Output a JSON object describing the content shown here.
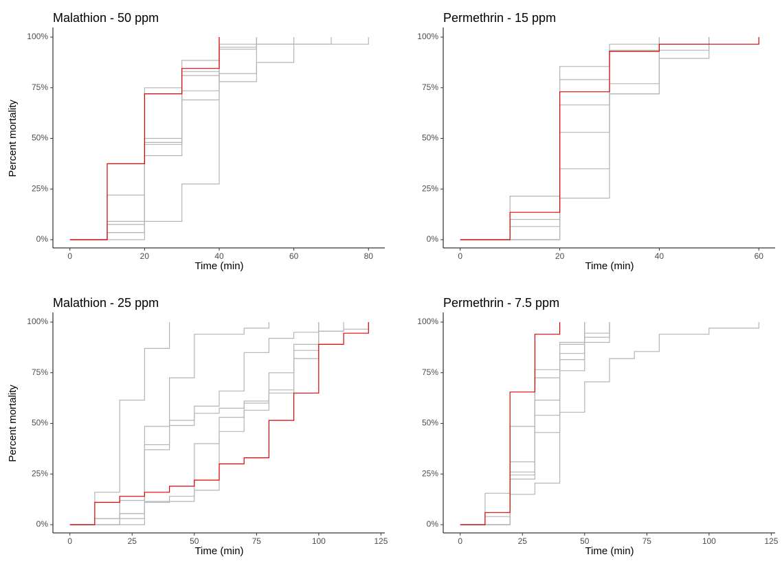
{
  "colors": {
    "highlight": "#e00000",
    "other": "#b4b4b4",
    "axis": "#000000"
  },
  "chart_data": [
    {
      "type": "line",
      "step": true,
      "title": "Malathion - 50 ppm",
      "xlabel": "Time (min)",
      "ylabel": "Percent mortality",
      "xlim": [
        -4,
        84
      ],
      "ylim": [
        0,
        1
      ],
      "xticks": [
        0,
        20,
        40,
        60,
        80
      ],
      "yticks": [
        0,
        0.25,
        0.5,
        0.75,
        1
      ],
      "ytick_labels": [
        "0%",
        "25%",
        "50%",
        "75%",
        "100%"
      ],
      "series": [
        {
          "highlight": true,
          "x": [
            0,
            10,
            20,
            30,
            40
          ],
          "y": [
            0,
            0.375,
            0.72,
            0.845,
            1.0
          ]
        },
        {
          "x": [
            0,
            10,
            20,
            30,
            40,
            50,
            60,
            70,
            80
          ],
          "y": [
            0,
            0.22,
            0.75,
            0.885,
            0.965,
            0.965,
            0.965,
            0.965,
            1.0
          ]
        },
        {
          "x": [
            0,
            10,
            20,
            30,
            40,
            50
          ],
          "y": [
            0,
            0.09,
            0.47,
            0.81,
            0.94,
            1.0
          ]
        },
        {
          "x": [
            0,
            10,
            20,
            30,
            40,
            50
          ],
          "y": [
            0,
            0.075,
            0.5,
            0.735,
            0.95,
            1.0
          ]
        },
        {
          "x": [
            0,
            10,
            20,
            30,
            40,
            50,
            60
          ],
          "y": [
            0,
            0.035,
            0.48,
            0.69,
            0.82,
            0.965,
            1.0
          ]
        },
        {
          "x": [
            0,
            10,
            20,
            30,
            40,
            50,
            60,
            70
          ],
          "y": [
            0,
            0.035,
            0.415,
            0.83,
            0.78,
            0.875,
            0.965,
            1.0
          ]
        },
        {
          "x": [
            0,
            20,
            30,
            40
          ],
          "y": [
            0,
            0.09,
            0.275,
            1.0
          ]
        }
      ]
    },
    {
      "type": "line",
      "step": true,
      "title": "Permethrin - 15 ppm",
      "xlabel": "Time (min)",
      "ylabel": "",
      "xlim": [
        -3,
        63
      ],
      "ylim": [
        0,
        1
      ],
      "xticks": [
        0,
        20,
        40,
        60
      ],
      "yticks": [
        0,
        0.25,
        0.5,
        0.75,
        1
      ],
      "ytick_labels": [
        "0%",
        "25%",
        "50%",
        "75%",
        "100%"
      ],
      "series": [
        {
          "highlight": true,
          "x": [
            0,
            10,
            20,
            30,
            40,
            60
          ],
          "y": [
            0,
            0.135,
            0.73,
            0.93,
            0.965,
            1.0
          ]
        },
        {
          "x": [
            0,
            10,
            20,
            30,
            40
          ],
          "y": [
            0,
            0.215,
            0.855,
            0.965,
            1.0
          ]
        },
        {
          "x": [
            0,
            10,
            20,
            30,
            40,
            50
          ],
          "y": [
            0,
            0.1,
            0.79,
            0.935,
            0.965,
            1.0
          ]
        },
        {
          "x": [
            0,
            10,
            20,
            30,
            40
          ],
          "y": [
            0,
            0.065,
            0.665,
            0.77,
            1.0
          ]
        },
        {
          "x": [
            0,
            20,
            30,
            40,
            50
          ],
          "y": [
            0,
            0.53,
            0.72,
            0.935,
            1.0
          ]
        },
        {
          "x": [
            0,
            20,
            30,
            40
          ],
          "y": [
            0,
            0.35,
            0.93,
            1.0
          ]
        },
        {
          "x": [
            0,
            20,
            30,
            40,
            50
          ],
          "y": [
            0,
            0.205,
            0.72,
            0.895,
            1.0
          ]
        }
      ]
    },
    {
      "type": "line",
      "step": true,
      "title": "Malathion - 25 ppm",
      "xlabel": "Time (min)",
      "ylabel": "Percent mortality",
      "xlim": [
        -6,
        126
      ],
      "ylim": [
        0,
        1
      ],
      "xticks": [
        0,
        25,
        50,
        75,
        100,
        125
      ],
      "yticks": [
        0,
        0.25,
        0.5,
        0.75,
        1
      ],
      "ytick_labels": [
        "0%",
        "25%",
        "50%",
        "75%",
        "100%"
      ],
      "series": [
        {
          "highlight": true,
          "x": [
            0,
            10,
            20,
            30,
            40,
            50,
            60,
            70,
            80,
            90,
            100,
            110,
            120
          ],
          "y": [
            0,
            0.11,
            0.14,
            0.16,
            0.19,
            0.22,
            0.3,
            0.33,
            0.515,
            0.65,
            0.89,
            0.945,
            1.0
          ]
        },
        {
          "x": [
            0,
            10,
            20,
            30,
            40
          ],
          "y": [
            0,
            0.16,
            0.615,
            0.87,
            1.0
          ]
        },
        {
          "x": [
            0,
            10,
            20,
            30,
            40,
            50,
            70,
            80
          ],
          "y": [
            0,
            0.03,
            0.12,
            0.485,
            0.725,
            0.94,
            0.97,
            1.0
          ]
        },
        {
          "x": [
            0,
            10,
            20,
            30,
            40,
            50,
            60,
            70,
            80,
            90,
            100,
            110
          ],
          "y": [
            0,
            0.03,
            0.055,
            0.395,
            0.515,
            0.585,
            0.66,
            0.85,
            0.92,
            0.95,
            0.955,
            1.0
          ]
        },
        {
          "x": [
            0,
            20,
            30,
            40,
            50,
            60,
            70,
            80,
            90,
            100,
            110,
            120
          ],
          "y": [
            0,
            0.03,
            0.37,
            0.49,
            0.55,
            0.575,
            0.61,
            0.75,
            0.86,
            0.955,
            0.965,
            1.0
          ]
        },
        {
          "x": [
            0,
            20,
            30,
            40,
            50,
            60,
            70,
            80,
            90,
            100
          ],
          "y": [
            0,
            0.055,
            0.11,
            0.115,
            0.4,
            0.46,
            0.565,
            0.665,
            0.89,
            1.0
          ]
        },
        {
          "x": [
            0,
            30,
            40,
            50,
            60,
            70,
            80,
            90,
            100
          ],
          "y": [
            0,
            0.115,
            0.14,
            0.17,
            0.53,
            0.6,
            0.65,
            0.82,
            1.0
          ]
        }
      ]
    },
    {
      "type": "line",
      "step": true,
      "title": "Permethrin - 7.5 ppm",
      "xlabel": "Time (min)",
      "ylabel": "",
      "xlim": [
        -6,
        126
      ],
      "ylim": [
        0,
        1
      ],
      "xticks": [
        0,
        25,
        50,
        75,
        100,
        125
      ],
      "yticks": [
        0,
        0.25,
        0.5,
        0.75,
        1
      ],
      "ytick_labels": [
        "0%",
        "25%",
        "50%",
        "75%",
        "100%"
      ],
      "series": [
        {
          "highlight": true,
          "x": [
            0,
            10,
            20,
            30,
            40
          ],
          "y": [
            0,
            0.06,
            0.655,
            0.94,
            1.0
          ]
        },
        {
          "x": [
            0,
            10,
            20,
            30,
            40,
            50,
            60,
            70,
            80,
            100,
            120
          ],
          "y": [
            0,
            0.155,
            0.15,
            0.205,
            0.555,
            0.705,
            0.82,
            0.855,
            0.94,
            0.97,
            1.0
          ]
        },
        {
          "x": [
            0,
            10,
            20,
            30,
            40,
            50
          ],
          "y": [
            0,
            0.04,
            0.485,
            0.765,
            0.9,
            1.0
          ]
        },
        {
          "x": [
            0,
            10,
            20,
            30,
            40,
            50,
            60
          ],
          "y": [
            0,
            0.0,
            0.31,
            0.725,
            0.845,
            0.9,
            1.0
          ]
        },
        {
          "x": [
            0,
            20,
            30,
            40,
            50,
            60
          ],
          "y": [
            0,
            0.26,
            0.615,
            0.815,
            0.925,
            1.0
          ]
        },
        {
          "x": [
            0,
            20,
            30,
            40,
            50,
            60
          ],
          "y": [
            0,
            0.245,
            0.54,
            0.89,
            0.945,
            1.0
          ]
        },
        {
          "x": [
            0,
            20,
            30,
            40,
            50
          ],
          "y": [
            0,
            0.225,
            0.455,
            0.76,
            1.0
          ]
        }
      ]
    }
  ]
}
